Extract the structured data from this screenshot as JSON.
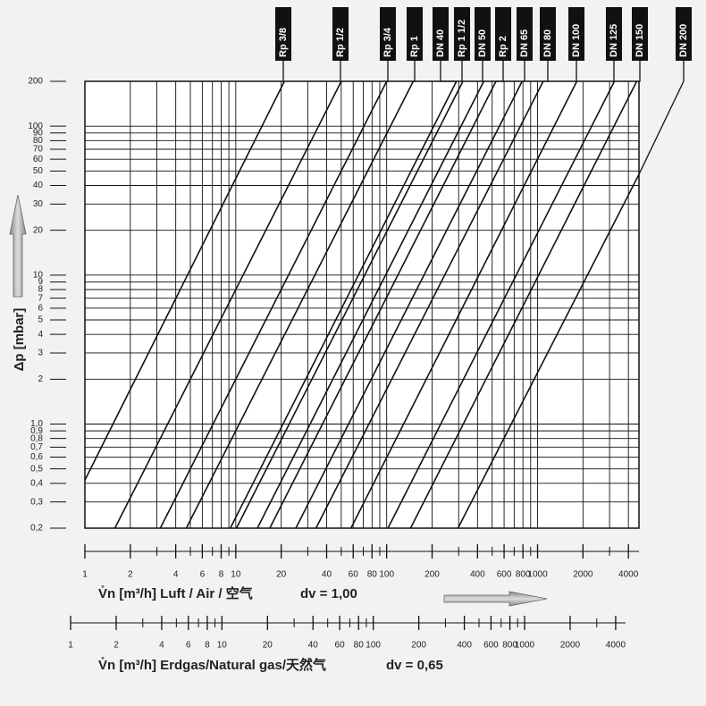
{
  "chart_data": {
    "type": "line",
    "y_label": "Δp [mbar]",
    "x_label": "V̊n [m³/h] Luft / Air / 空气",
    "x_note": "dv = 1,00",
    "x2_label": "V̊n [m³/h] Erdgas/Natural gas/天然气",
    "x2_note": "dv = 0,65",
    "xscale": "log",
    "yscale": "log",
    "grid": true,
    "color": "#111111",
    "xlim": [
      1,
      4700
    ],
    "xticks": [
      1,
      2,
      4,
      6,
      8,
      10,
      20,
      40,
      60,
      80,
      100,
      200,
      400,
      600,
      800,
      1000,
      2000,
      4000
    ],
    "xminorticks": [
      3,
      5,
      7,
      9,
      30,
      50,
      70,
      90,
      300,
      500,
      700,
      900,
      3000
    ],
    "x2lim": [
      1,
      4650
    ],
    "x2ticks": [
      1,
      2,
      4,
      6,
      8,
      10,
      20,
      40,
      60,
      80,
      100,
      200,
      400,
      600,
      800,
      1000,
      2000,
      4000
    ],
    "x2minorticks": [
      3,
      5,
      7,
      9,
      30,
      50,
      70,
      90,
      300,
      500,
      700,
      900,
      3000
    ],
    "ylim": [
      0.2,
      200
    ],
    "yticks": [
      200,
      100,
      90,
      80,
      70,
      60,
      50,
      40,
      30,
      20,
      10,
      9,
      8,
      7,
      6,
      5,
      4,
      3,
      2,
      {
        "value": 1,
        "label": "1,0"
      },
      {
        "value": 0.9,
        "label": "0,9"
      },
      {
        "value": 0.8,
        "label": "0,8"
      },
      {
        "value": 0.7,
        "label": "0,7"
      },
      {
        "value": 0.6,
        "label": "0,6"
      },
      {
        "value": 0.5,
        "label": "0,5"
      },
      {
        "value": 0.4,
        "label": "0,4"
      },
      {
        "value": 0.3,
        "label": "0,3"
      },
      {
        "value": 0.2,
        "label": "0,2"
      }
    ],
    "series": [
      {
        "name": "Rp 3/8",
        "x": [
          1,
          21
        ],
        "values": [
          0.42,
          200
        ]
      },
      {
        "name": "Rp 1/2",
        "x": [
          1.58,
          50
        ],
        "values": [
          0.2,
          200
        ]
      },
      {
        "name": "Rp 3/4",
        "x": [
          3.16,
          100
        ],
        "values": [
          0.2,
          200
        ]
      },
      {
        "name": "Rp 1",
        "x": [
          4.7,
          150
        ],
        "values": [
          0.2,
          200
        ]
      },
      {
        "name": "DN 40",
        "x": [
          9.2,
          290
        ],
        "values": [
          0.2,
          200
        ]
      },
      {
        "name": "Rp 1 1/2",
        "x": [
          10.1,
          320
        ],
        "values": [
          0.2,
          200
        ]
      },
      {
        "name": "DN 50",
        "x": [
          13.9,
          440
        ],
        "values": [
          0.2,
          200
        ]
      },
      {
        "name": "Rp 2",
        "x": [
          16.8,
          530
        ],
        "values": [
          0.2,
          200
        ]
      },
      {
        "name": "DN 65",
        "x": [
          25,
          790
        ],
        "values": [
          0.2,
          200
        ]
      },
      {
        "name": "DN 80",
        "x": [
          34,
          1090
        ],
        "values": [
          0.2,
          200
        ]
      },
      {
        "name": "DN 100",
        "x": [
          58,
          1820
        ],
        "values": [
          0.2,
          200
        ]
      },
      {
        "name": "DN 125",
        "x": [
          102,
          3230
        ],
        "values": [
          0.2,
          200
        ]
      },
      {
        "name": "DN 150",
        "x": [
          144,
          4540
        ],
        "values": [
          0.2,
          200
        ]
      },
      {
        "name": "DN 200",
        "x": [
          297,
          4700
        ],
        "values": [
          0.2,
          47.5
        ]
      }
    ]
  }
}
